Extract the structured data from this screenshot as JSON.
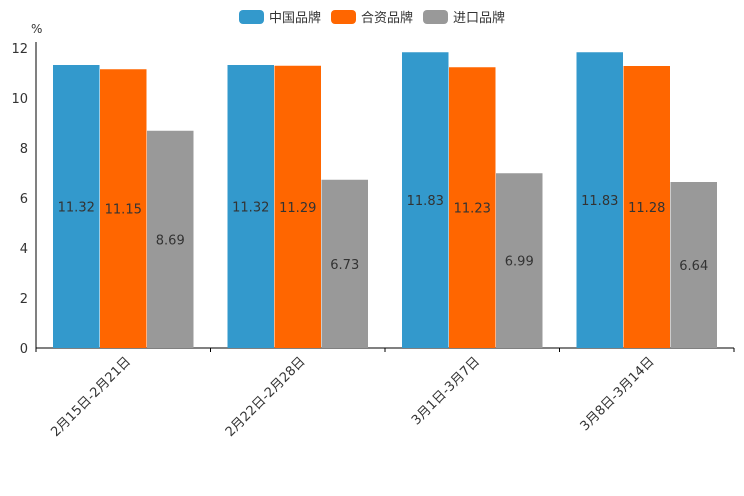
{
  "chart_data": {
    "type": "bar",
    "unit": "%",
    "categories": [
      "2月15日-2月21日",
      "2月22日-2月28日",
      "3月1日-3月7日",
      "3月8日-3月14日"
    ],
    "series": [
      {
        "name": "中国品牌",
        "color": "#3399cc",
        "values": [
          11.32,
          11.32,
          11.83,
          11.83
        ]
      },
      {
        "name": "合资品牌",
        "color": "#ff6600",
        "values": [
          11.15,
          11.29,
          11.23,
          11.28
        ]
      },
      {
        "name": "进口品牌",
        "color": "#999999",
        "values": [
          8.69,
          6.73,
          6.99,
          6.64
        ]
      }
    ],
    "ylim": [
      0,
      12
    ],
    "yticks": [
      0,
      2,
      4,
      6,
      8,
      10,
      12
    ],
    "legend_position": "top-center",
    "grid": false
  }
}
